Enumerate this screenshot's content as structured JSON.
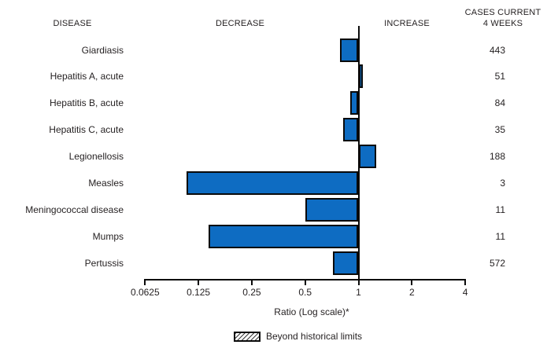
{
  "header": {
    "disease": "DISEASE",
    "decrease": "DECREASE",
    "increase": "INCREASE",
    "cases_line1": "CASES CURRENT",
    "cases_line2": "4 WEEKS"
  },
  "chart_data": {
    "type": "bar",
    "orientation": "horizontal-diverging",
    "scale": "log",
    "baseline_ratio": 1,
    "xlabel": "Ratio (Log scale)*",
    "xlim": [
      0.0625,
      4
    ],
    "x_ticks": [
      0.0625,
      0.125,
      0.25,
      0.5,
      1,
      2,
      4
    ],
    "x_tick_labels": [
      "0.0625",
      "0.125",
      "0.25",
      "0.5",
      "1",
      "2",
      "4"
    ],
    "grid": false,
    "legend_position": "bottom",
    "rows": [
      {
        "disease": "Giardiasis",
        "ratio": 0.79,
        "cases": "443",
        "beyond_historical_limits": false
      },
      {
        "disease": "Hepatitis A, acute",
        "ratio": 1.06,
        "cases": "51",
        "beyond_historical_limits": false
      },
      {
        "disease": "Hepatitis B, acute",
        "ratio": 0.9,
        "cases": "84",
        "beyond_historical_limits": false
      },
      {
        "disease": "Hepatitis C, acute",
        "ratio": 0.82,
        "cases": "35",
        "beyond_historical_limits": false
      },
      {
        "disease": "Legionellosis",
        "ratio": 1.26,
        "cases": "188",
        "beyond_historical_limits": false
      },
      {
        "disease": "Measles",
        "ratio": 0.107,
        "cases": "3",
        "beyond_historical_limits": false
      },
      {
        "disease": "Meningococcal disease",
        "ratio": 0.5,
        "cases": "11",
        "beyond_historical_limits": false
      },
      {
        "disease": "Mumps",
        "ratio": 0.143,
        "cases": "11",
        "beyond_historical_limits": false
      },
      {
        "disease": "Pertussis",
        "ratio": 0.72,
        "cases": "572",
        "beyond_historical_limits": false
      }
    ],
    "legend": {
      "label": "Beyond historical limits",
      "swatch": "hatched-box"
    }
  },
  "colors": {
    "bar_fill": "#0e6cc2",
    "bar_border": "#0a0a0a",
    "axis": "#0a0a0a",
    "text": "#231f20"
  }
}
